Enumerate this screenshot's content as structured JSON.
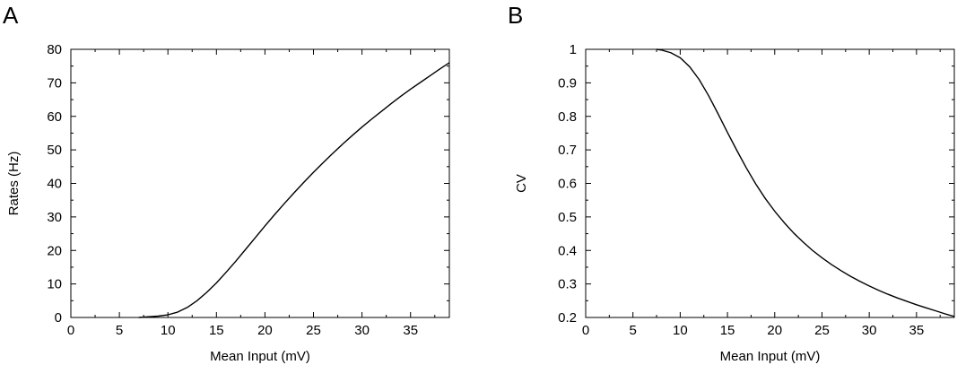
{
  "chart_data": [
    {
      "panel_label": "A",
      "type": "line",
      "xlabel": "Mean Input (mV)",
      "ylabel": "Rates (Hz)",
      "xlim": [
        0,
        39
      ],
      "ylim": [
        0,
        80
      ],
      "xticks": [
        0,
        5,
        10,
        15,
        20,
        25,
        30,
        35
      ],
      "yticks": [
        0,
        10,
        20,
        30,
        40,
        50,
        60,
        70,
        80
      ],
      "grid": false,
      "series": [
        {
          "x": [
            7,
            8,
            9,
            10,
            11,
            12,
            13,
            14,
            15,
            16,
            17,
            18,
            19,
            20,
            21,
            22,
            23,
            24,
            25,
            26,
            27,
            28,
            29,
            30,
            31,
            32,
            33,
            34,
            35,
            36,
            37,
            38,
            39
          ],
          "values": [
            0,
            0.2,
            0.4,
            0.8,
            1.6,
            3,
            5,
            7.5,
            10.3,
            13.5,
            16.8,
            20.3,
            23.8,
            27.3,
            30.7,
            34,
            37.2,
            40.3,
            43.3,
            46.2,
            49,
            51.7,
            54.3,
            56.8,
            59.2,
            61.5,
            63.8,
            66,
            68.1,
            70.1,
            72.1,
            74.1,
            76
          ]
        }
      ]
    },
    {
      "panel_label": "B",
      "type": "line",
      "xlabel": "Mean Input (mV)",
      "ylabel": "CV",
      "xlim": [
        0,
        39
      ],
      "ylim": [
        0.2,
        1
      ],
      "xticks": [
        0,
        5,
        10,
        15,
        20,
        25,
        30,
        35
      ],
      "yticks": [
        0.2,
        0.3,
        0.4,
        0.5,
        0.6,
        0.7,
        0.8,
        0.9,
        1
      ],
      "ytick_labels": [
        "0.2",
        "0.3",
        "0.4",
        "0.5",
        "0.6",
        "0.7",
        "0.8",
        "0.9",
        "1"
      ],
      "grid": false,
      "series": [
        {
          "x": [
            7.5,
            8,
            9,
            10,
            11,
            12,
            13,
            14,
            15,
            16,
            17,
            18,
            19,
            20,
            21,
            22,
            23,
            24,
            25,
            26,
            27,
            28,
            29,
            30,
            31,
            32,
            33,
            34,
            35,
            36,
            37,
            38,
            39
          ],
          "values": [
            1,
            0.998,
            0.99,
            0.975,
            0.948,
            0.91,
            0.862,
            0.808,
            0.752,
            0.698,
            0.646,
            0.598,
            0.555,
            0.517,
            0.483,
            0.452,
            0.425,
            0.4,
            0.378,
            0.358,
            0.34,
            0.323,
            0.308,
            0.294,
            0.281,
            0.269,
            0.258,
            0.248,
            0.238,
            0.229,
            0.22,
            0.211,
            0.203
          ]
        }
      ]
    }
  ]
}
